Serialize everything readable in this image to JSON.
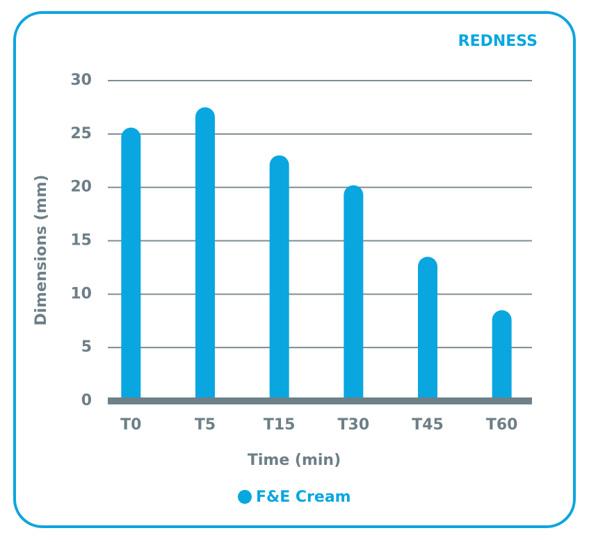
{
  "chart_data": {
    "type": "bar",
    "title": "REDNESS",
    "x_label": "Time (min)",
    "y_label": "Dimensions (mm)",
    "categories": [
      "T0",
      "T5",
      "T15",
      "T30",
      "T45",
      "T60"
    ],
    "series": [
      {
        "name": "F&E Cream",
        "color": "#0aa6e0",
        "values": [
          25.6,
          27.5,
          23.0,
          20.2,
          13.5,
          8.5
        ]
      }
    ],
    "ylim": [
      0,
      30
    ],
    "yticks": [
      0,
      5,
      10,
      15,
      20,
      25,
      30
    ],
    "grid": true,
    "legend": "bottom"
  }
}
